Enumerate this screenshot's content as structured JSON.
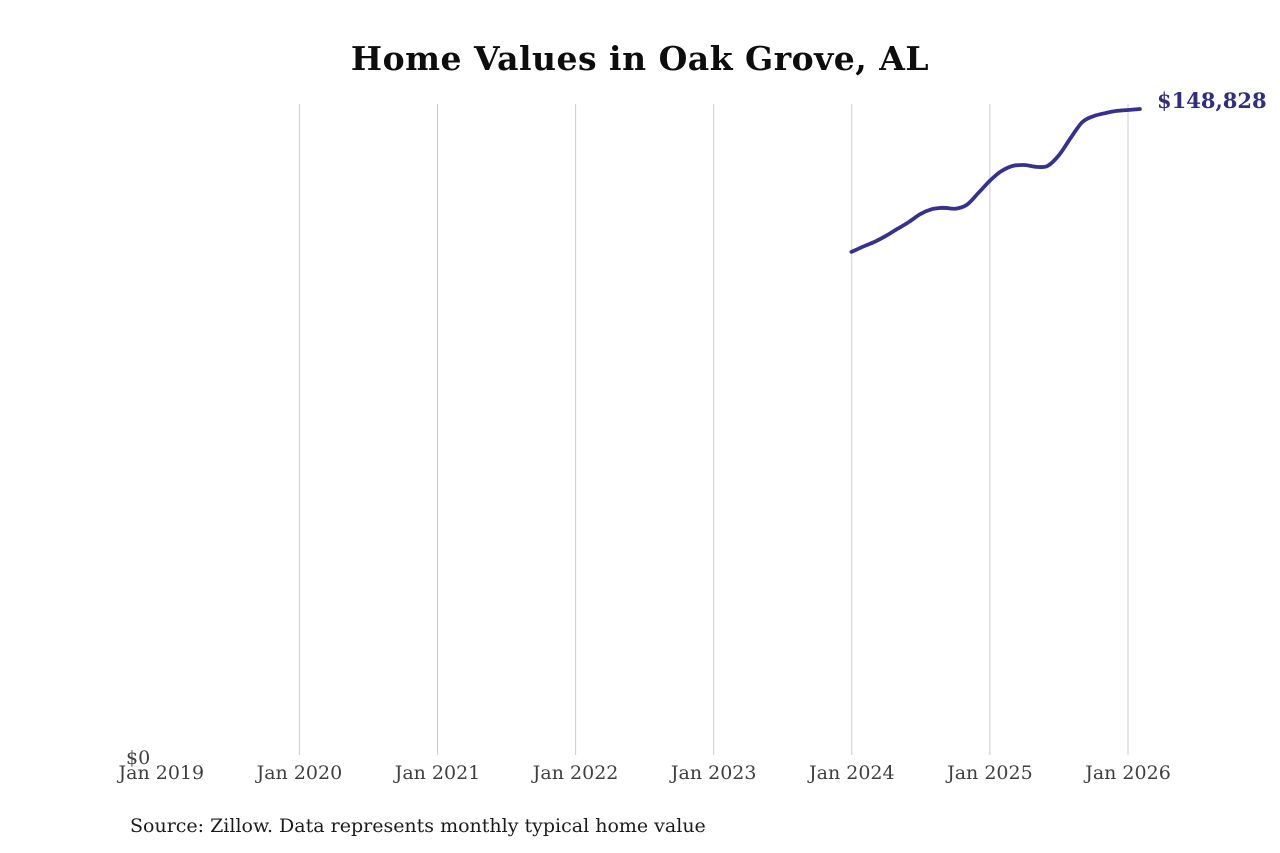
{
  "chart": {
    "title": "Home Values in Oak Grove, AL",
    "end_label": "$148,828",
    "y_zero_label": "$0",
    "source_note": "Source: Zillow. Data represents monthly typical home value",
    "colors": {
      "line": "#363190",
      "end_label": "#312e81",
      "gridline": "#cccccc",
      "axis_text": "#3f3f3f",
      "title_text": "#0d0d0d",
      "source_text": "#1b1b1b",
      "background": "#ffffff"
    }
  },
  "chart_data": {
    "type": "line",
    "title": "Home Values in Oak Grove, AL",
    "xlabel": "",
    "ylabel": "",
    "source": "Zillow",
    "ylim": [
      0,
      150000
    ],
    "grid": "vertical-only",
    "legend": "none",
    "x_axis": {
      "tick_labels": [
        "Jan 2019",
        "Jan 2020",
        "Jan 2021",
        "Jan 2022",
        "Jan 2023",
        "Jan 2024",
        "Jan 2025",
        "Jan 2026"
      ]
    },
    "y_axis": {
      "tick_labels": [
        "$0"
      ]
    },
    "series": [
      {
        "name": "Monthly typical home value (USD)",
        "months": [
          "2024-01",
          "2024-02",
          "2024-03",
          "2024-04",
          "2024-05",
          "2024-06",
          "2024-07",
          "2024-08",
          "2024-09",
          "2024-10",
          "2024-11",
          "2024-12",
          "2025-01",
          "2025-02",
          "2025-03",
          "2025-04",
          "2025-05",
          "2025-06",
          "2025-07",
          "2025-08",
          "2025-09",
          "2025-10",
          "2025-11",
          "2025-12",
          "2026-01",
          "2026-02"
        ],
        "values": [
          116100,
          117300,
          118400,
          119800,
          121400,
          123000,
          124800,
          125900,
          126200,
          126000,
          126900,
          129600,
          132400,
          134600,
          135800,
          136000,
          135600,
          135800,
          138300,
          142200,
          145800,
          147200,
          147900,
          148400,
          148600,
          148828
        ],
        "last_value_label": "$148,828"
      }
    ]
  }
}
